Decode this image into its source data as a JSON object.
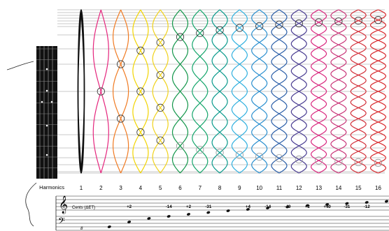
{
  "harmonics_label": "Harmonics",
  "cents_label": "Cents (ΔET)",
  "ottava_mark": "8",
  "harmonics": [
    {
      "n": "1",
      "cents": "",
      "color": "#111111",
      "loops": 1
    },
    {
      "n": "2",
      "cents": "",
      "color": "#e5257d",
      "loops": 2
    },
    {
      "n": "3",
      "cents": "+2",
      "color": "#f07a21",
      "loops": 3
    },
    {
      "n": "4",
      "cents": "",
      "color": "#f2d400",
      "loops": 4
    },
    {
      "n": "5",
      "cents": "-14",
      "color": "#f0d21a",
      "loops": 5
    },
    {
      "n": "6",
      "cents": "+2",
      "color": "#12964a",
      "loops": 6
    },
    {
      "n": "7",
      "cents": "-31",
      "color": "#14a56b",
      "loops": 7
    },
    {
      "n": "8",
      "cents": "",
      "color": "#0a9a8c",
      "loops": 8
    },
    {
      "n": "9",
      "cents": "+4",
      "color": "#30b0df",
      "loops": 9
    },
    {
      "n": "10",
      "cents": "-14",
      "color": "#2a8fcf",
      "loops": 10
    },
    {
      "n": "11",
      "cents": "-49",
      "color": "#2a5ea8",
      "loops": 11
    },
    {
      "n": "12",
      "cents": "+2",
      "color": "#4a3d92",
      "loops": 12
    },
    {
      "n": "13",
      "cents": "+40",
      "color": "#d9287f",
      "loops": 13
    },
    {
      "n": "14",
      "cents": "-31",
      "color": "#c93578",
      "loops": 14
    },
    {
      "n": "15",
      "cents": "-12",
      "color": "#d3303a",
      "loops": 15
    },
    {
      "n": "16",
      "cents": "",
      "color": "#d82a2e",
      "loops": 16
    }
  ],
  "colors": {
    "string_lines": "#888888",
    "node_grey": "#9a9a9a",
    "fingerboard": "#111111",
    "staff": "#222222"
  }
}
